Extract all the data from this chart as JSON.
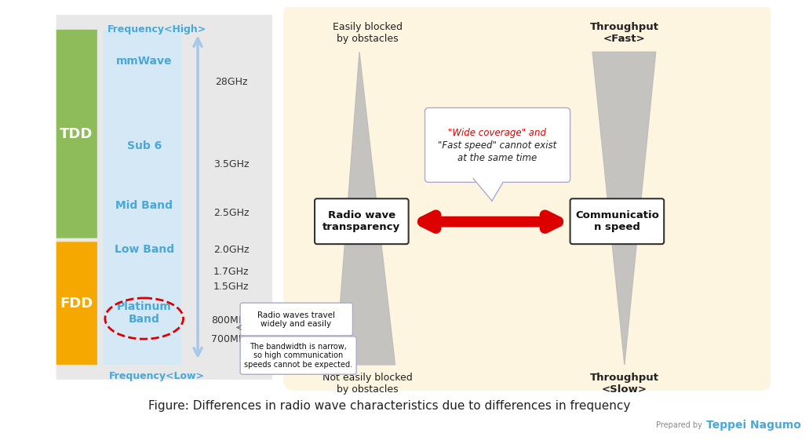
{
  "title": "Figure: Differences in radio wave characteristics due to differences in frequency",
  "bg_color": "#f5f5f5",
  "left_panel_bg": "#e8e8e8",
  "right_panel_bg": "#fdf5e0",
  "tdd_color": "#8fbc5a",
  "fdd_color": "#f5a800",
  "arrow_color": "#a8c8e8",
  "band_labels": [
    "mmWave",
    "Sub 6",
    "Mid Band",
    "Low Band",
    "Platinum\nBand"
  ],
  "band_label_color": "#4aa8d8",
  "freq_labels": [
    "28GHz",
    "3.5GHz",
    "2.5GHz",
    "2.0GHz",
    "1.7GHz",
    "1.5GHz",
    "800MHz",
    "700MHz"
  ],
  "freq_label_color": "#333333",
  "platinum_ellipse_color": "#dd0000",
  "callout1_text": "Radio waves travel\nwidely and easily",
  "callout2_text": "The bandwidth is narrow,\nso high communication\nspeeds cannot be expected.",
  "tri_color": "#bbbbbb",
  "box1_text": "Radio wave\ntransparency",
  "box2_text": "Communicatio\nn speed",
  "red_arrow_color": "#dd0000",
  "speech_bubble_text": "\"Wide coverage\" and\n\"Fast speed\" cannot exist\nat the same time",
  "speech_bubble_red_parts": [
    "\"Wide coverage\"",
    "\"Fast speed\""
  ],
  "top_left_label": "Easily blocked\nby obstacles",
  "bottom_left_label": "Not easily blocked\nby obstacles",
  "top_right_label": "Throughput\n<Fast>",
  "bottom_right_label": "Throughput\n<Slow>",
  "prepared_by": "Prepared by",
  "author": "Teppei Nagumo",
  "author_color": "#4aa8d8"
}
